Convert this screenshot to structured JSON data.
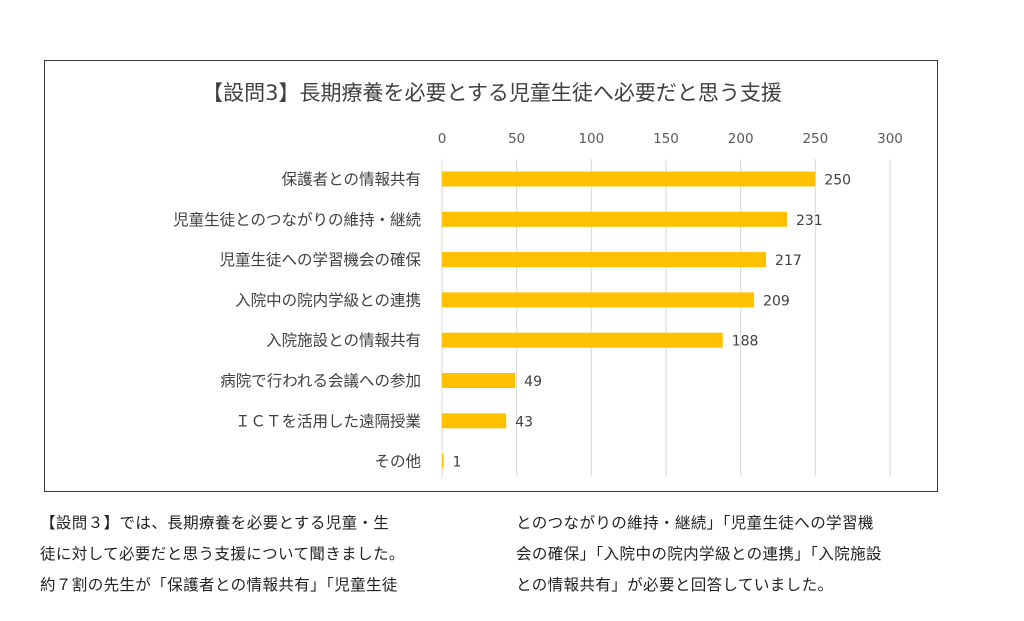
{
  "chart_data": {
    "type": "bar",
    "orientation": "horizontal",
    "title": "【設問3】長期療養を必要とする児童生徒へ必要だと思う支援",
    "xlabel": "",
    "ylabel": "",
    "xlim": [
      0,
      300
    ],
    "ticks": [
      "0",
      "50",
      "100",
      "150",
      "200",
      "250",
      "300"
    ],
    "tick_values": [
      0,
      50,
      100,
      150,
      200,
      250,
      300
    ],
    "grid": "vertical",
    "legend": "none",
    "bar_color": "#FFC000",
    "categories": [
      "保護者との情報共有",
      "児童生徒とのつながりの維持・継続",
      "児童生徒への学習機会の確保",
      "入院中の院内学級との連携",
      "入院施設との情報共有",
      "病院で行われる会議への参加",
      "ＩＣＴを活用した遠隔授業",
      "その他"
    ],
    "values": [
      250,
      231,
      217,
      209,
      188,
      49,
      43,
      1
    ]
  },
  "caption": {
    "left_lines": [
      "【設問３】では、長期療養を必要とする児童・生",
      "徒に対して必要だと思う支援について聞きました。",
      "約７割の先生が「保護者との情報共有」「児童生徒"
    ],
    "right_lines": [
      "とのつながりの維持・継続」「児童生徒への学習機",
      "会の確保」「入院中の院内学級との連携」「入院施設",
      "との情報共有」が必要と回答していました。"
    ]
  }
}
